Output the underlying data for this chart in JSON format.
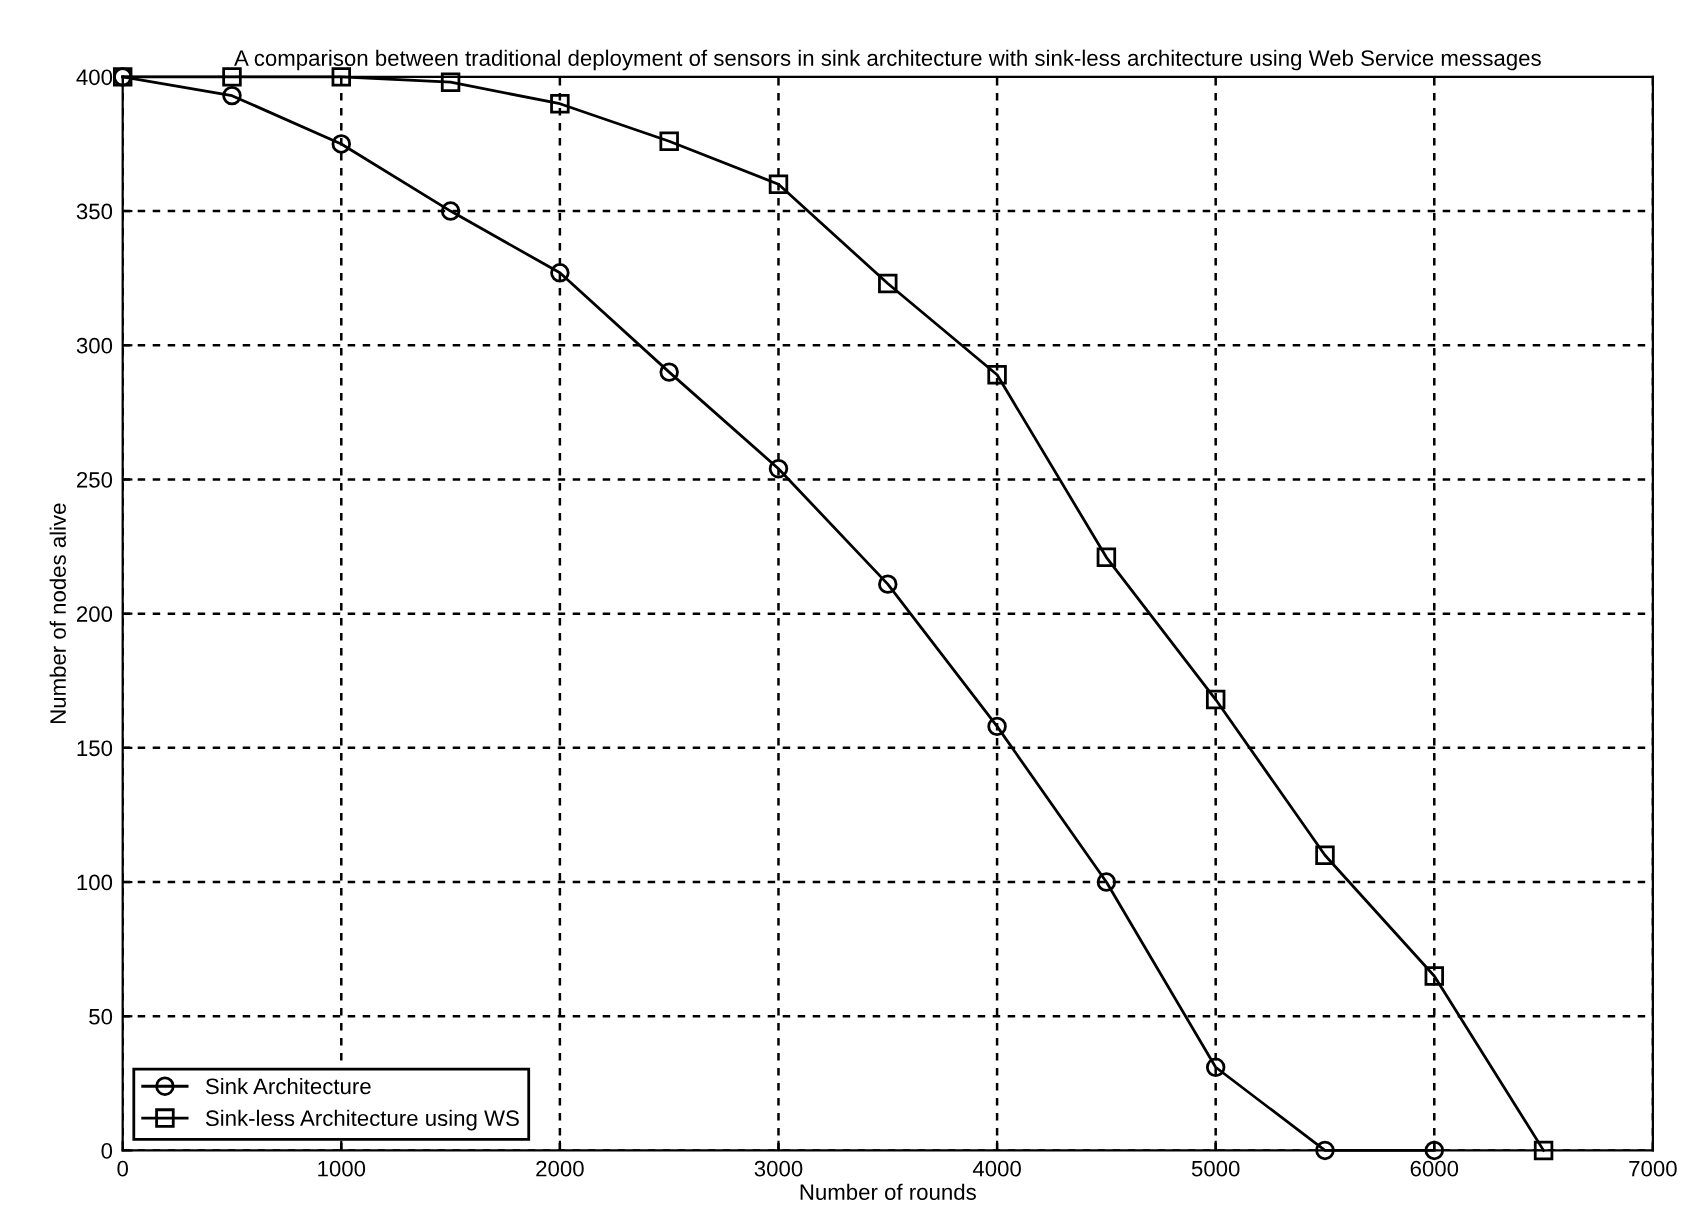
{
  "chart_data": {
    "type": "line",
    "title": "A comparison between traditional deployment of sensors in sink architecture with sink-less architecture using Web Service messages",
    "xlabel": "Number of rounds",
    "ylabel": "Number of nodes alive",
    "x": [
      0,
      500,
      1000,
      1500,
      2000,
      2500,
      3000,
      3500,
      4000,
      4500,
      5000,
      5500,
      6000,
      6500
    ],
    "series": [
      {
        "name": "Sink Architecture",
        "color": "#000000",
        "marker": "circle",
        "x": [
          0,
          500,
          1000,
          1500,
          2000,
          2500,
          3000,
          3500,
          4000,
          4500,
          5000,
          5500,
          6000
        ],
        "values": [
          400,
          393,
          375,
          350,
          327,
          290,
          254,
          211,
          158,
          100,
          31,
          0,
          0
        ]
      },
      {
        "name": "Sink-less Architecture using WS",
        "color": "#000000",
        "marker": "square",
        "values": [
          400,
          400,
          400,
          398,
          390,
          376,
          360,
          323,
          289,
          221,
          168,
          110,
          65,
          0
        ]
      }
    ],
    "xlim": [
      0,
      7000
    ],
    "ylim": [
      0,
      400
    ],
    "xticks": [
      0,
      1000,
      2000,
      3000,
      4000,
      5000,
      6000,
      7000
    ],
    "yticks": [
      0,
      50,
      100,
      150,
      200,
      250,
      300,
      350,
      400
    ],
    "grid": true,
    "legend": "bottom left",
    "line_style": "solid"
  }
}
